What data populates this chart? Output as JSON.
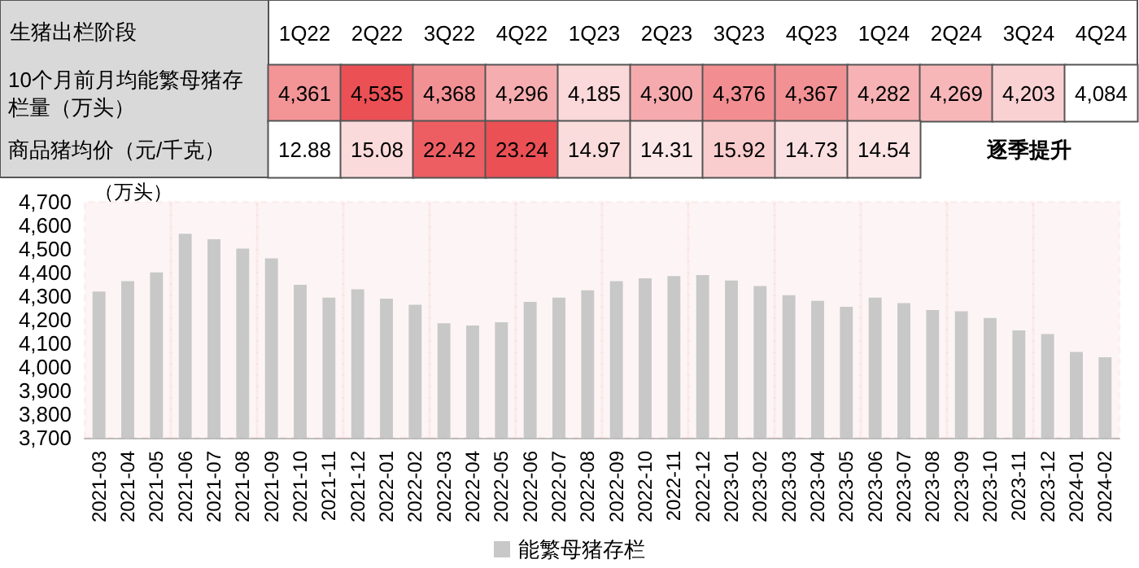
{
  "chart_data": [
    {
      "type": "heatmap",
      "xlabel": "生猪出栏阶段",
      "categories": [
        "1Q22",
        "2Q22",
        "3Q22",
        "4Q22",
        "1Q23",
        "2Q23",
        "3Q23",
        "4Q23",
        "1Q24",
        "2Q24",
        "3Q24",
        "4Q24"
      ],
      "y_categories": [
        "10个月前月均能繁母猪存栏量（万头）",
        "商品猪均价（元/千克）"
      ],
      "cells": [
        [
          4361,
          4535,
          4368,
          4296,
          4185,
          4300,
          4376,
          4367,
          4282,
          4269,
          4203,
          4084
        ],
        [
          12.88,
          15.08,
          22.42,
          23.24,
          14.97,
          14.31,
          15.92,
          14.73,
          14.54,
          null,
          null,
          null
        ]
      ],
      "cell_labels": [
        [
          "4,361",
          "4,535",
          "4,368",
          "4,296",
          "4,185",
          "4,300",
          "4,376",
          "4,367",
          "4,282",
          "4,269",
          "4,203",
          "4,084"
        ],
        [
          "12.88",
          "15.08",
          "22.42",
          "23.24",
          "14.97",
          "14.31",
          "15.92",
          "14.73",
          "14.54",
          null,
          null,
          null
        ]
      ],
      "annotations": [
        "逐季提升"
      ]
    },
    {
      "type": "bar",
      "ylabel": "（万头）",
      "legend": "bottom",
      "grid": false,
      "categories": [
        "2021-03",
        "2021-04",
        "2021-05",
        "2021-06",
        "2021-07",
        "2021-08",
        "2021-09",
        "2021-10",
        "2021-11",
        "2021-12",
        "2022-01",
        "2022-02",
        "2022-03",
        "2022-04",
        "2022-05",
        "2022-06",
        "2022-07",
        "2022-08",
        "2022-09",
        "2022-10",
        "2022-11",
        "2022-12",
        "2023-01",
        "2023-02",
        "2023-03",
        "2023-04",
        "2023-05",
        "2023-06",
        "2023-07",
        "2023-08",
        "2023-09",
        "2023-10",
        "2023-11",
        "2023-12",
        "2024-01",
        "2024-02"
      ],
      "series": [
        {
          "name": "能繁母猪存栏",
          "color": "#c8c8c8",
          "values": [
            4320,
            4364,
            4401,
            4565,
            4541,
            4502,
            4460,
            4348,
            4294,
            4329,
            4290,
            4264,
            4185,
            4176,
            4190,
            4276,
            4294,
            4325,
            4364,
            4376,
            4385,
            4390,
            4366,
            4343,
            4304,
            4280,
            4255,
            4294,
            4271,
            4241,
            4236,
            4208,
            4155,
            4140,
            4064,
            4041
          ]
        }
      ],
      "ylim": [
        3700,
        4700
      ],
      "yticks": [
        {
          "value": 3700,
          "label": "3,700"
        },
        {
          "value": 3800,
          "label": "3,800"
        },
        {
          "value": 3900,
          "label": "3,900"
        },
        {
          "value": 4000,
          "label": "4,000"
        },
        {
          "value": 4100,
          "label": "4,100"
        },
        {
          "value": 4200,
          "label": "4,200"
        },
        {
          "value": 4300,
          "label": "4,300"
        },
        {
          "value": 4400,
          "label": "4,400"
        },
        {
          "value": 4500,
          "label": "4,500"
        },
        {
          "value": 4600,
          "label": "4,600"
        },
        {
          "value": 4700,
          "label": "4,700"
        }
      ],
      "bands": [
        {
          "axis": "x",
          "from": "2021-03",
          "to": "2021-05",
          "color": "#c00000"
        },
        {
          "axis": "x",
          "from": "2021-06",
          "to": "2021-08",
          "color": "#c00000"
        },
        {
          "axis": "x",
          "from": "2021-09",
          "to": "2021-11",
          "color": "#c00000"
        },
        {
          "axis": "x",
          "from": "2021-12",
          "to": "2022-02",
          "color": "#c00000"
        },
        {
          "axis": "x",
          "from": "2022-03",
          "to": "2022-05",
          "color": "#c00000"
        },
        {
          "axis": "x",
          "from": "2022-06",
          "to": "2022-08",
          "color": "#c00000"
        },
        {
          "axis": "x",
          "from": "2022-09",
          "to": "2022-11",
          "color": "#c00000"
        },
        {
          "axis": "x",
          "from": "2022-12",
          "to": "2023-02",
          "color": "#c00000"
        },
        {
          "axis": "x",
          "from": "2023-03",
          "to": "2023-05",
          "color": "#c00000"
        },
        {
          "axis": "x",
          "from": "2023-06",
          "to": "2023-08",
          "color": "#c00000"
        },
        {
          "axis": "x",
          "from": "2023-09",
          "to": "2023-11",
          "color": "#c00000"
        },
        {
          "axis": "x",
          "from": "2023-12",
          "to": "2024-02",
          "color": "#c00000"
        }
      ]
    }
  ]
}
